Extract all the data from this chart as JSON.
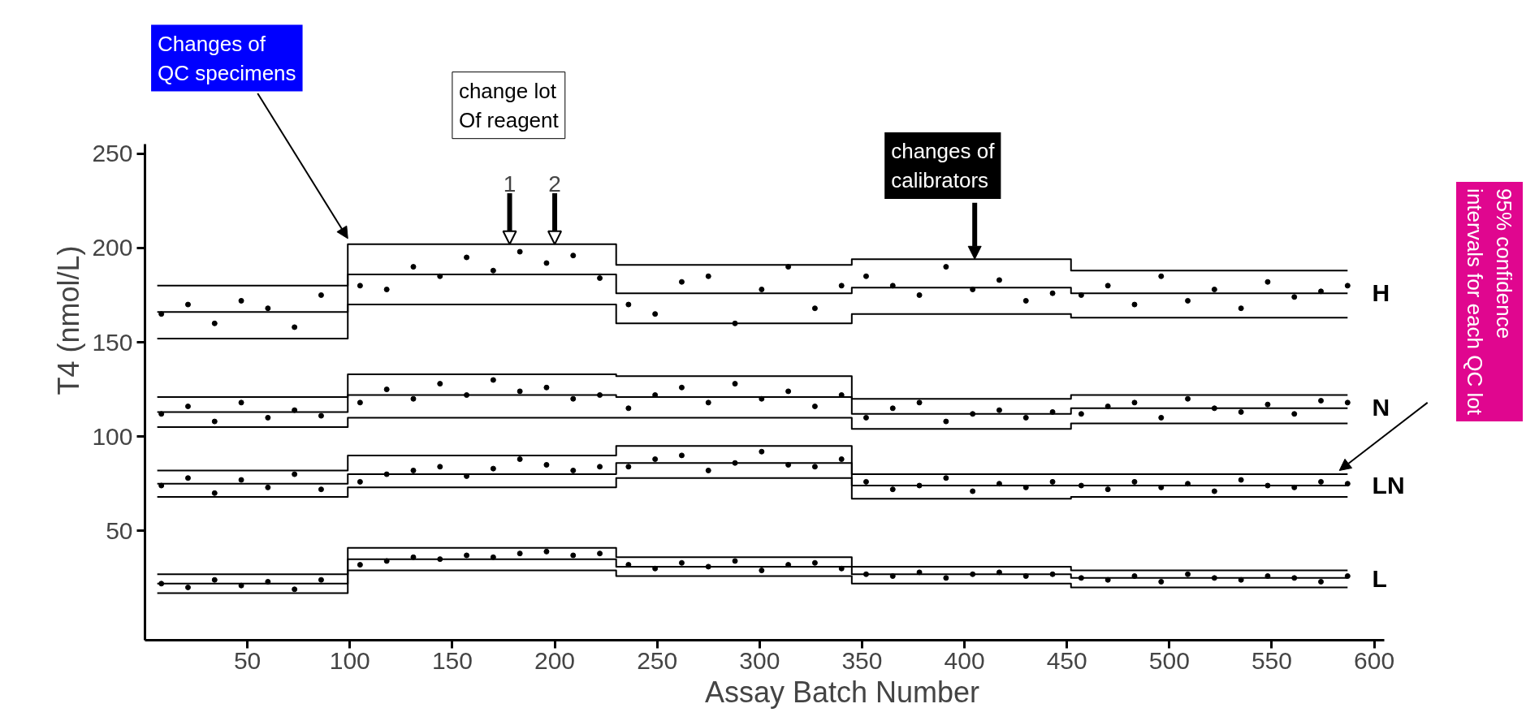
{
  "chart_data": {
    "type": "scatter",
    "xlabel": "Assay Batch Number",
    "ylabel": "T4 (nmol/L)",
    "xlim": [
      0,
      605
    ],
    "ylim": [
      -8,
      255
    ],
    "xticks": [
      50,
      100,
      150,
      200,
      250,
      300,
      350,
      400,
      450,
      500,
      550,
      600
    ],
    "yticks": [
      50,
      100,
      150,
      200,
      250
    ],
    "grid": false,
    "x": [
      8,
      21,
      34,
      47,
      60,
      73,
      86,
      105,
      118,
      131,
      144,
      157,
      170,
      183,
      196,
      209,
      222,
      236,
      249,
      262,
      275,
      288,
      301,
      314,
      327,
      340,
      352,
      365,
      378,
      391,
      404,
      417,
      430,
      443,
      457,
      470,
      483,
      496,
      509,
      522,
      535,
      548,
      561,
      574,
      587
    ],
    "series": [
      {
        "type": "scatter",
        "marker": "circle",
        "name": "H",
        "color": "#000000",
        "values": [
          165,
          170,
          160,
          172,
          168,
          158,
          175,
          180,
          178,
          190,
          185,
          195,
          188,
          198,
          192,
          196,
          184,
          170,
          165,
          182,
          185,
          160,
          178,
          190,
          168,
          180,
          185,
          180,
          175,
          190,
          178,
          183,
          172,
          176,
          175,
          180,
          170,
          185,
          172,
          178,
          168,
          182,
          174,
          177,
          180
        ]
      },
      {
        "marker": "circle",
        "name": "N",
        "color": "#000000",
        "values": [
          112,
          116,
          108,
          118,
          110,
          114,
          111,
          118,
          125,
          120,
          128,
          122,
          130,
          124,
          126,
          120,
          122,
          115,
          122,
          126,
          118,
          128,
          120,
          124,
          116,
          122,
          110,
          115,
          118,
          108,
          112,
          114,
          110,
          113,
          112,
          116,
          118,
          110,
          120,
          115,
          113,
          117,
          112,
          119,
          118
        ]
      },
      {
        "marker": "circle",
        "name": "LN",
        "color": "#000000",
        "values": [
          74,
          78,
          70,
          77,
          73,
          80,
          72,
          76,
          80,
          82,
          84,
          79,
          83,
          88,
          85,
          82,
          84,
          84,
          88,
          90,
          82,
          86,
          92,
          85,
          84,
          88,
          76,
          72,
          74,
          78,
          71,
          75,
          73,
          76,
          74,
          72,
          76,
          73,
          75,
          71,
          77,
          74,
          73,
          76,
          75
        ]
      },
      {
        "marker": "circle",
        "name": "L",
        "color": "#000000",
        "values": [
          22,
          20,
          24,
          21,
          23,
          19,
          24,
          32,
          34,
          36,
          35,
          37,
          36,
          38,
          39,
          37,
          38,
          32,
          30,
          33,
          31,
          34,
          29,
          32,
          33,
          30,
          27,
          26,
          28,
          25,
          27,
          28,
          26,
          27,
          25,
          24,
          26,
          23,
          27,
          25,
          24,
          26,
          25,
          23,
          26
        ]
      },
      {
        "type": "line",
        "color": "#000000",
        "x": [
          6,
          99,
          99,
          230,
          230,
          345,
          345,
          452,
          452,
          587
        ],
        "values": [
          180,
          180,
          202,
          202,
          191,
          191,
          194,
          194,
          188,
          188
        ]
      },
      {
        "type": "line",
        "color": "#000000",
        "x": [
          6,
          99,
          99,
          230,
          230,
          345,
          345,
          452,
          452,
          587
        ],
        "values": [
          166,
          166,
          186,
          186,
          176,
          176,
          179,
          179,
          176,
          176
        ]
      },
      {
        "type": "line",
        "color": "#000000",
        "x": [
          6,
          99,
          99,
          230,
          230,
          345,
          345,
          452,
          452,
          587
        ],
        "values": [
          152,
          152,
          170,
          170,
          160,
          160,
          165,
          165,
          163,
          163
        ]
      },
      {
        "type": "line",
        "color": "#000000",
        "x": [
          6,
          99,
          99,
          230,
          230,
          345,
          345,
          452,
          452,
          587
        ],
        "values": [
          121,
          121,
          133,
          133,
          132,
          132,
          120,
          120,
          122,
          122
        ]
      },
      {
        "type": "line",
        "color": "#000000",
        "x": [
          6,
          99,
          99,
          230,
          230,
          345,
          345,
          452,
          452,
          587
        ],
        "values": [
          113,
          113,
          122,
          122,
          121,
          121,
          112,
          112,
          115,
          115
        ]
      },
      {
        "type": "line",
        "color": "#000000",
        "x": [
          6,
          99,
          99,
          230,
          230,
          345,
          345,
          452,
          452,
          587
        ],
        "values": [
          105,
          105,
          110,
          110,
          110,
          110,
          104,
          104,
          107,
          107
        ]
      },
      {
        "type": "line",
        "color": "#000000",
        "x": [
          6,
          99,
          99,
          230,
          230,
          345,
          345,
          452,
          452,
          587
        ],
        "values": [
          82,
          82,
          90,
          90,
          95,
          95,
          80,
          80,
          80,
          80
        ]
      },
      {
        "type": "line",
        "color": "#000000",
        "x": [
          6,
          99,
          99,
          230,
          230,
          345,
          345,
          452,
          452,
          587
        ],
        "values": [
          75,
          75,
          80,
          80,
          86,
          86,
          74,
          74,
          74,
          74
        ]
      },
      {
        "type": "line",
        "color": "#000000",
        "x": [
          6,
          99,
          99,
          230,
          230,
          345,
          345,
          452,
          452,
          587
        ],
        "values": [
          68,
          68,
          73,
          73,
          78,
          78,
          67,
          67,
          68,
          68
        ]
      },
      {
        "type": "line",
        "color": "#000000",
        "x": [
          6,
          99,
          99,
          230,
          230,
          345,
          345,
          452,
          452,
          587
        ],
        "values": [
          27,
          27,
          41,
          41,
          36,
          36,
          31,
          31,
          29,
          29
        ]
      },
      {
        "type": "line",
        "color": "#000000",
        "x": [
          6,
          99,
          99,
          230,
          230,
          345,
          345,
          452,
          452,
          587
        ],
        "values": [
          22,
          22,
          35,
          35,
          31,
          31,
          27,
          27,
          25,
          25
        ]
      },
      {
        "type": "line",
        "color": "#000000",
        "x": [
          6,
          99,
          99,
          230,
          230,
          345,
          345,
          452,
          452,
          587
        ],
        "values": [
          17,
          17,
          29,
          29,
          26,
          26,
          22,
          22,
          20,
          20
        ]
      }
    ],
    "annotations": [
      "Changes of\nQC specimens",
      "change lot\nOf reagent",
      {
        "text": "1",
        "x": 178,
        "y": 202
      },
      {
        "text": "2",
        "x": 200,
        "y": 202
      },
      {
        "text": "changes of\ncalibrators",
        "x": 405,
        "y": 194
      },
      "95% confidence\nintervals for each QC lot"
    ]
  }
}
